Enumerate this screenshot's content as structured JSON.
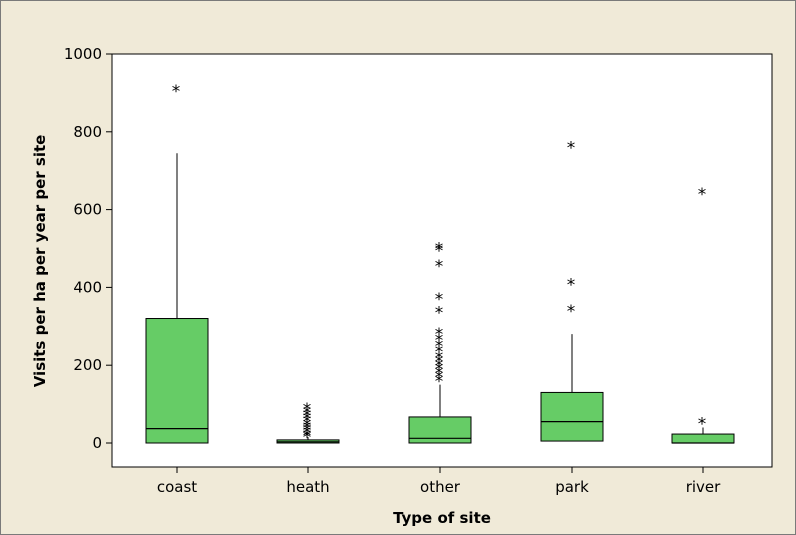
{
  "chart_data": {
    "type": "boxplot",
    "title": "",
    "xlabel": "Type of site",
    "ylabel": "Visits per ha per year per site",
    "ylim": [
      -60,
      1000
    ],
    "yticks": [
      0,
      200,
      400,
      600,
      800,
      1000
    ],
    "grid": false,
    "legend": "none",
    "box_color": "#66cc66",
    "line_color": "#000000",
    "background_color": "#f0ead8",
    "plot_background_color": "#ffffff",
    "categories": [
      "coast",
      "heath",
      "other",
      "park",
      "river"
    ],
    "boxes": [
      {
        "category": "coast",
        "whisker_low": 0,
        "q1": 0,
        "median": 37,
        "q3": 320,
        "whisker_high": 745,
        "outliers": [
          910
        ]
      },
      {
        "category": "heath",
        "whisker_low": 0,
        "q1": 0,
        "median": 3,
        "q3": 8,
        "whisker_high": 15,
        "outliers": [
          20,
          25,
          32,
          38,
          45,
          52,
          60,
          68,
          76,
          84,
          92
        ]
      },
      {
        "category": "other",
        "whisker_low": 0,
        "q1": 0,
        "median": 12,
        "q3": 67,
        "whisker_high": 150,
        "outliers": [
          165,
          175,
          185,
          195,
          205,
          215,
          225,
          240,
          255,
          270,
          285,
          340,
          375,
          460,
          500,
          505
        ]
      },
      {
        "category": "park",
        "whisker_low": 5,
        "q1": 5,
        "median": 55,
        "q3": 130,
        "whisker_high": 280,
        "outliers": [
          345,
          412,
          765
        ]
      },
      {
        "category": "river",
        "whisker_low": 0,
        "q1": 0,
        "median": 0,
        "q3": 23,
        "whisker_high": 40,
        "outliers": [
          55,
          645
        ]
      }
    ]
  }
}
